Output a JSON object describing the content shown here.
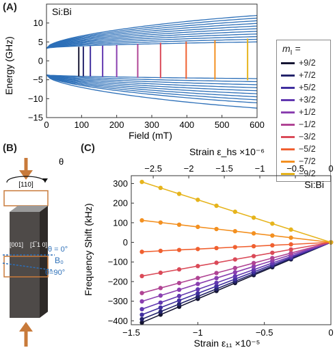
{
  "panels": {
    "a": {
      "label": "(A)",
      "sample": "Si:Bi"
    },
    "b": {
      "label": "(B)",
      "direction_110": "[110]",
      "direction_001": "[001]",
      "direction_1m10": "[1̅ 1 0]",
      "theta_symbol": "θ",
      "theta0": "θ = 0°",
      "theta90": "θ=90°",
      "field_label": "B₀"
    },
    "c": {
      "label": "(C)",
      "sample": "Si:Bi"
    }
  },
  "legend": {
    "title": "m",
    "title_sub": "I",
    "title_suffix": " =",
    "entries": [
      {
        "label": "+9/2",
        "color": "#141432"
      },
      {
        "label": "+7/2",
        "color": "#23236b"
      },
      {
        "label": "+5/2",
        "color": "#3f2e9e"
      },
      {
        "label": "+3/2",
        "color": "#6137b0"
      },
      {
        "label": "+1/2",
        "color": "#8a3fb0"
      },
      {
        "label": "−1/2",
        "color": "#b04494"
      },
      {
        "label": "−3/2",
        "color": "#da4a58"
      },
      {
        "label": "−5/2",
        "color": "#f06030"
      },
      {
        "label": "−7/2",
        "color": "#f39020"
      },
      {
        "label": "−9/2",
        "color": "#e6b41c"
      }
    ]
  },
  "chart_data": [
    {
      "type": "line",
      "title": "",
      "xlabel": "Field (mT)",
      "ylabel": "Energy (GHz)",
      "xlim": [
        0,
        600
      ],
      "ylim": [
        -15,
        15
      ],
      "xticks": [
        "0",
        "100",
        "200",
        "300",
        "400",
        "500",
        "600"
      ],
      "yticks": [
        "−15",
        "−10",
        "−5",
        "0",
        "5",
        "10"
      ],
      "ytick_values": [
        -15,
        -10,
        -5,
        0,
        5,
        10
      ],
      "xtick_values": [
        0,
        100,
        200,
        300,
        400,
        500,
        600
      ],
      "line_color": "#2c6fb8",
      "upper_levels": {
        "start": 3.3,
        "end": [
          5.0,
          5.7,
          6.4,
          7.1,
          7.8,
          8.5,
          9.2,
          9.9,
          10.6,
          11.3,
          12.0
        ]
      },
      "lower_levels": {
        "start": -3.7,
        "end": [
          -4.7,
          -5.5,
          -6.3,
          -7.1,
          -7.9,
          -8.7,
          -9.5,
          -10.3,
          -11.1,
          -12.5
        ]
      },
      "transitions": [
        {
          "field": 92,
          "color": "#141432"
        },
        {
          "field": 105,
          "color": "#23236b"
        },
        {
          "field": 125,
          "color": "#3f2e9e"
        },
        {
          "field": 160,
          "color": "#6137b0"
        },
        {
          "field": 200,
          "color": "#8a3fb0"
        },
        {
          "field": 260,
          "color": "#b04494"
        },
        {
          "field": 325,
          "color": "#da4a58"
        },
        {
          "field": 398,
          "color": "#f06030"
        },
        {
          "field": 480,
          "color": "#f39020"
        },
        {
          "field": 573,
          "color": "#e6b41c"
        }
      ]
    },
    {
      "type": "line",
      "title": "",
      "xlabel": "Strain ε₁₁ ×10⁻⁵",
      "ylabel": "Frequency Shift (kHz)",
      "top_xlabel": "Strain ε_hs ×10⁻⁶",
      "xlim": [
        -1.5,
        0
      ],
      "ylim": [
        -420,
        340
      ],
      "xticks": [
        "−1.5",
        "−1",
        "−0.5",
        "0"
      ],
      "xtick_values": [
        -1.5,
        -1,
        -0.5,
        0
      ],
      "top_xticks": [
        "−2.5",
        "−2",
        "−1.5",
        "−1",
        "−0.5",
        "0"
      ],
      "top_xtick_positions": [
        -1.335,
        -1.068,
        -0.801,
        -0.534,
        -0.267,
        0
      ],
      "yticks": [
        "−400",
        "−300",
        "−200",
        "−100",
        "0",
        "100",
        "200",
        "300"
      ],
      "ytick_values": [
        -400,
        -300,
        -200,
        -100,
        0,
        100,
        200,
        300
      ],
      "x": [
        -1.42,
        -1.28,
        -1.14,
        -1.0,
        -0.86,
        -0.72,
        -0.58,
        -0.44,
        -0.3,
        0
      ],
      "series": [
        {
          "slope": 288,
          "color": "#141432"
        },
        {
          "slope": 276,
          "color": "#23236b"
        },
        {
          "slope": 260,
          "color": "#3f2e9e"
        },
        {
          "slope": 240,
          "color": "#6137b0"
        },
        {
          "slope": 212,
          "color": "#8a3fb0"
        },
        {
          "slope": 182,
          "color": "#b04494"
        },
        {
          "slope": 121,
          "color": "#da4a58"
        },
        {
          "slope": 34,
          "color": "#f06030"
        },
        {
          "slope": -79,
          "color": "#f39020"
        },
        {
          "slope": -217,
          "color": "#e6b41c"
        }
      ]
    }
  ]
}
